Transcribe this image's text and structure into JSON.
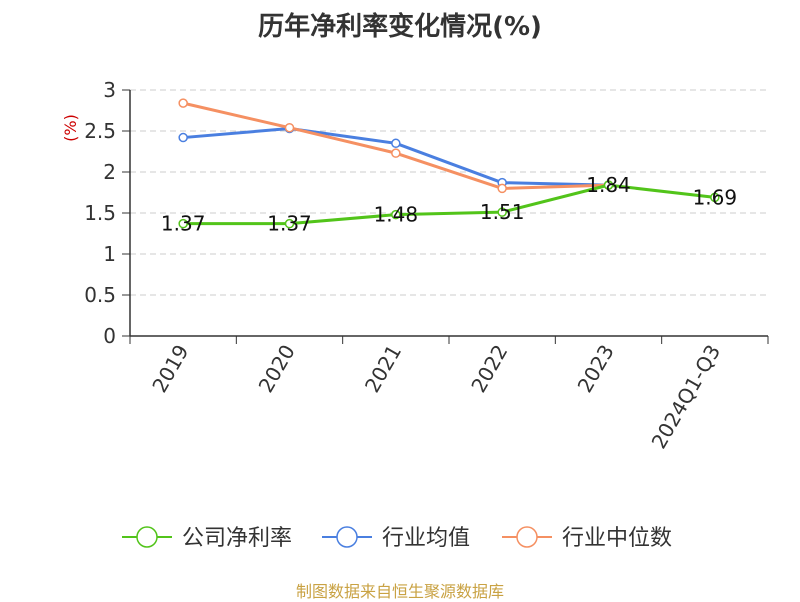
{
  "chart_data": {
    "type": "line",
    "title": "历年净利率变化情况(%)",
    "ylabel": "(%)",
    "xlabel": "",
    "categories": [
      "2019",
      "2020",
      "2021",
      "2022",
      "2023",
      "2024Q1-Q3"
    ],
    "ylim": [
      0,
      3
    ],
    "yticks": [
      "0",
      "0.5",
      "1",
      "1.5",
      "2",
      "2.5",
      "3"
    ],
    "grid": true,
    "legend_position": "bottom",
    "series": [
      {
        "name": "公司净利率",
        "color": "#52c41a",
        "values": [
          1.37,
          1.37,
          1.48,
          1.51,
          1.84,
          1.69
        ],
        "labels": [
          "1.37",
          "1.37",
          "1.48",
          "1.51",
          "1.84",
          "1.69"
        ]
      },
      {
        "name": "行业均值",
        "color": "#4a7fe0",
        "values": [
          2.42,
          2.53,
          2.35,
          1.87,
          1.84,
          null
        ]
      },
      {
        "name": "行业中位数",
        "color": "#f59062",
        "values": [
          2.84,
          2.54,
          2.23,
          1.8,
          1.84,
          null
        ]
      }
    ]
  },
  "source": "制图数据来自恒生聚源数据库"
}
